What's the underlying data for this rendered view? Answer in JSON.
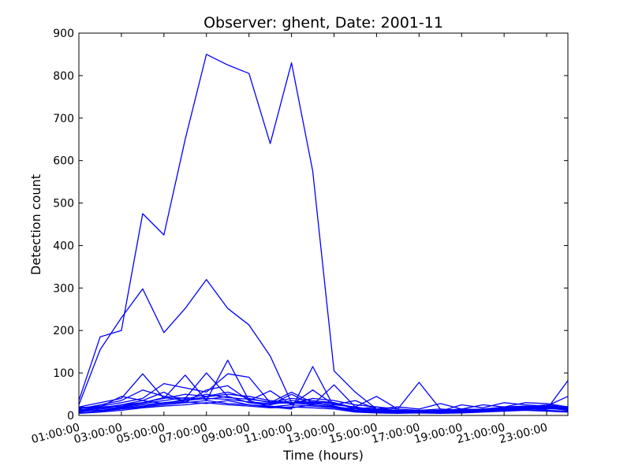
{
  "chart_data": {
    "type": "line",
    "title": "Observer: ghent, Date: 2001-11",
    "xlabel": "Time (hours)",
    "ylabel": "Detection count",
    "xlim": [
      0,
      23
    ],
    "ylim": [
      0,
      900
    ],
    "xticks": [
      {
        "value": 0,
        "label": "01:00:00"
      },
      {
        "value": 2,
        "label": "03:00:00"
      },
      {
        "value": 4,
        "label": "05:00:00"
      },
      {
        "value": 6,
        "label": "07:00:00"
      },
      {
        "value": 8,
        "label": "09:00:00"
      },
      {
        "value": 10,
        "label": "11:00:00"
      },
      {
        "value": 12,
        "label": "13:00:00"
      },
      {
        "value": 14,
        "label": "15:00:00"
      },
      {
        "value": 16,
        "label": "17:00:00"
      },
      {
        "value": 18,
        "label": "19:00:00"
      },
      {
        "value": 20,
        "label": "21:00:00"
      },
      {
        "value": 22,
        "label": "23:00:00"
      }
    ],
    "yticks": [
      {
        "value": 0,
        "label": "0"
      },
      {
        "value": 100,
        "label": "100"
      },
      {
        "value": 200,
        "label": "200"
      },
      {
        "value": 300,
        "label": "300"
      },
      {
        "value": 400,
        "label": "400"
      },
      {
        "value": 500,
        "label": "500"
      },
      {
        "value": 600,
        "label": "600"
      },
      {
        "value": 700,
        "label": "700"
      },
      {
        "value": 800,
        "label": "800"
      },
      {
        "value": 900,
        "label": "900"
      }
    ],
    "grid": false,
    "line_color": "#0000ff",
    "x": [
      0,
      1,
      2,
      3,
      4,
      5,
      6,
      7,
      8,
      9,
      10,
      11,
      12,
      13,
      14,
      15,
      16,
      17,
      18,
      19,
      20,
      21,
      22,
      23
    ],
    "series": [
      {
        "values": [
          35,
          185,
          200,
          475,
          425,
          650,
          850,
          825,
          805,
          640,
          830,
          575,
          105,
          55,
          15,
          12,
          10,
          12,
          15,
          14,
          18,
          22,
          20,
          18
        ]
      },
      {
        "values": [
          25,
          155,
          230,
          298,
          195,
          252,
          320,
          252,
          213,
          140,
          30,
          25,
          20,
          15,
          12,
          10,
          12,
          10,
          14,
          15,
          20,
          22,
          18,
          15
        ]
      },
      {
        "values": [
          20,
          30,
          40,
          98,
          40,
          95,
          35,
          130,
          35,
          20,
          15,
          115,
          20,
          10,
          8,
          10,
          8,
          10,
          12,
          10,
          15,
          18,
          14,
          82
        ]
      },
      {
        "values": [
          15,
          25,
          35,
          60,
          45,
          40,
          100,
          45,
          30,
          25,
          50,
          25,
          72,
          20,
          45,
          15,
          78,
          15,
          10,
          12,
          15,
          20,
          25,
          20
        ]
      },
      {
        "values": [
          18,
          22,
          30,
          40,
          75,
          65,
          55,
          98,
          90,
          30,
          55,
          30,
          30,
          15,
          20,
          10,
          12,
          10,
          25,
          18,
          30,
          25,
          22,
          45
        ]
      },
      {
        "values": [
          12,
          20,
          45,
          35,
          55,
          30,
          60,
          70,
          35,
          58,
          25,
          60,
          25,
          35,
          15,
          20,
          15,
          28,
          15,
          25,
          20,
          30,
          28,
          20
        ]
      },
      {
        "values": [
          10,
          18,
          25,
          30,
          40,
          50,
          45,
          55,
          40,
          30,
          40,
          35,
          30,
          18,
          15,
          12,
          10,
          12,
          10,
          12,
          15,
          18,
          20,
          15
        ]
      },
      {
        "values": [
          8,
          15,
          20,
          28,
          35,
          42,
          38,
          45,
          30,
          25,
          35,
          30,
          22,
          12,
          10,
          8,
          8,
          10,
          8,
          10,
          12,
          15,
          18,
          12
        ]
      },
      {
        "values": [
          14,
          12,
          18,
          25,
          30,
          35,
          40,
          38,
          32,
          28,
          30,
          28,
          25,
          20,
          12,
          10,
          10,
          8,
          10,
          12,
          14,
          16,
          15,
          18
        ]
      },
      {
        "values": [
          6,
          10,
          15,
          20,
          25,
          30,
          35,
          28,
          25,
          20,
          25,
          22,
          18,
          10,
          8,
          6,
          8,
          6,
          8,
          10,
          12,
          14,
          12,
          10
        ]
      },
      {
        "values": [
          20,
          15,
          25,
          35,
          28,
          38,
          50,
          42,
          38,
          32,
          28,
          40,
          35,
          25,
          20,
          15,
          12,
          15,
          12,
          15,
          18,
          20,
          22,
          20
        ]
      },
      {
        "values": [
          5,
          8,
          12,
          18,
          22,
          25,
          30,
          25,
          22,
          18,
          20,
          18,
          15,
          8,
          6,
          5,
          6,
          5,
          6,
          8,
          10,
          12,
          10,
          8
        ]
      },
      {
        "values": [
          10,
          12,
          16,
          22,
          28,
          32,
          28,
          35,
          25,
          22,
          18,
          25,
          20,
          15,
          10,
          8,
          10,
          8,
          10,
          12,
          15,
          18,
          16,
          14
        ]
      },
      {
        "values": [
          16,
          20,
          22,
          30,
          42,
          36,
          44,
          50,
          45,
          35,
          30,
          32,
          28,
          18,
          14,
          12,
          10,
          12,
          12,
          14,
          16,
          20,
          18,
          16
        ]
      }
    ]
  }
}
